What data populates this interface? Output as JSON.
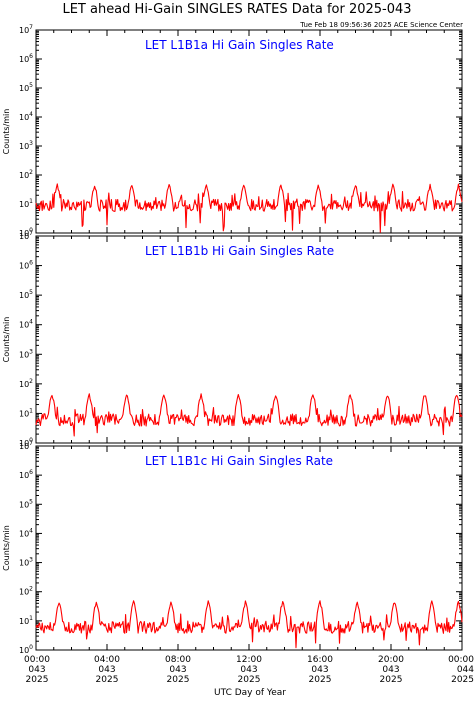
{
  "page": {
    "title": "LET ahead Hi-Gain SINGLES RATES Data for 2025-043",
    "timestamp": "Tue Feb 18 09:56:36 2025 ACE Science Center",
    "xlabel": "UTC Day of Year"
  },
  "colors": {
    "series": "#ff0000",
    "panel_title": "#0000ff",
    "axis": "#000000",
    "background": "#ffffff"
  },
  "chart_data": [
    {
      "type": "line",
      "title": "LET L1B1a Hi Gain Singles Rate",
      "ylabel": "Counts/min",
      "yscale": "log",
      "ylim": [
        1,
        10000000
      ],
      "y_tick_labels": [
        "10^0",
        "10^1",
        "10^2",
        "10^3",
        "10^4",
        "10^5",
        "10^6",
        "10^7"
      ],
      "xlim": [
        "043 00:00",
        "044 00:00"
      ],
      "series": [
        {
          "baseline": 9,
          "spread": "5-15",
          "spike_peak": 45,
          "spike_hours": [
            1.2,
            3.3,
            5.4,
            7.5,
            9.6,
            11.7,
            13.8,
            15.9,
            18.0,
            20.1,
            22.2,
            23.8
          ]
        }
      ]
    },
    {
      "type": "line",
      "title": "LET L1B1b Hi Gain Singles Rate",
      "ylabel": "Counts/min",
      "yscale": "log",
      "ylim": [
        1,
        10000000
      ],
      "y_tick_labels": [
        "10^0",
        "10^1",
        "10^2",
        "10^3",
        "10^4",
        "10^5",
        "10^6",
        "10^7"
      ],
      "xlim": [
        "043 00:00",
        "044 00:00"
      ],
      "series": [
        {
          "baseline": 6,
          "spread": "2-12",
          "spike_peak": 45,
          "spike_hours": [
            0.9,
            3.0,
            5.1,
            7.2,
            9.3,
            11.4,
            13.5,
            15.6,
            17.7,
            19.8,
            21.9,
            23.7
          ]
        }
      ]
    },
    {
      "type": "line",
      "title": "LET L1B1c Hi Gain Singles Rate",
      "ylabel": "Counts/min",
      "yscale": "log",
      "ylim": [
        1,
        10000000
      ],
      "y_tick_labels": [
        "10^0",
        "10^1",
        "10^2",
        "10^3",
        "10^4",
        "10^5",
        "10^6",
        "10^7"
      ],
      "xlim": [
        "043 00:00",
        "044 00:00"
      ],
      "series": [
        {
          "baseline": 6,
          "spread": "2-12",
          "spike_peak": 45,
          "spike_hours": [
            1.3,
            3.4,
            5.5,
            7.6,
            9.7,
            11.8,
            13.9,
            16.0,
            18.1,
            20.2,
            22.3,
            23.8
          ]
        }
      ]
    }
  ],
  "x_ticks": [
    {
      "time": "00:00",
      "day": "043",
      "year": "2025"
    },
    {
      "time": "04:00",
      "day": "043",
      "year": "2025"
    },
    {
      "time": "08:00",
      "day": "043",
      "year": "2025"
    },
    {
      "time": "12:00",
      "day": "043",
      "year": "2025"
    },
    {
      "time": "16:00",
      "day": "043",
      "year": "2025"
    },
    {
      "time": "20:00",
      "day": "043",
      "year": "2025"
    },
    {
      "time": "00:00",
      "day": "044",
      "year": "2025"
    }
  ]
}
